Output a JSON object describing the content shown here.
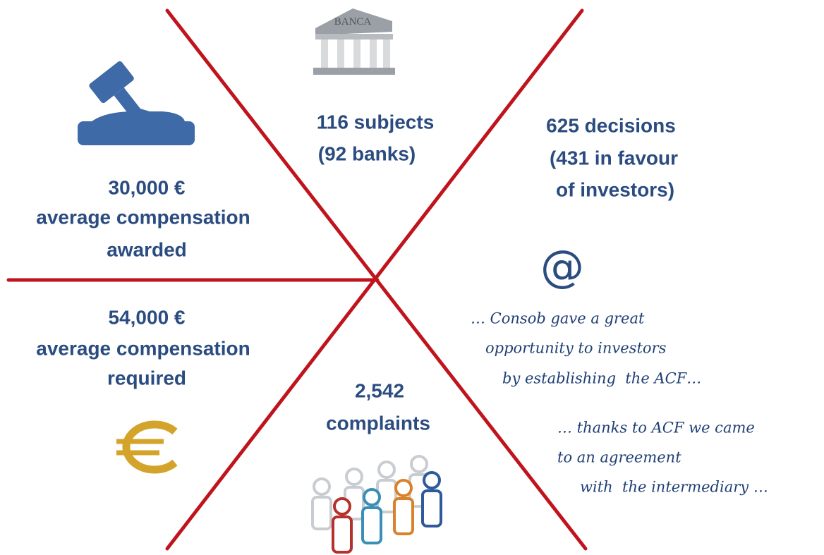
{
  "icons": {
    "bank_label": "BANCA",
    "at_sign": "@"
  },
  "blocks": {
    "subjects": [
      "116 subjects",
      "(92 banks)"
    ],
    "decisions": [
      "625 decisions",
      "(431 in favour",
      "of investors)"
    ],
    "awarded": [
      "30,000 €",
      "average compensation",
      "awarded"
    ],
    "required": [
      "54,000 €",
      "average compensation",
      "required"
    ],
    "complaints": [
      "2,542",
      "complaints"
    ]
  },
  "quotes": [
    [
      "… Consob gave a great",
      "opportunity to investors",
      "by establishing  the ACF…"
    ],
    [
      "… thanks to ACF we came",
      "to an agreement",
      "with  the intermediary …"
    ]
  ]
}
